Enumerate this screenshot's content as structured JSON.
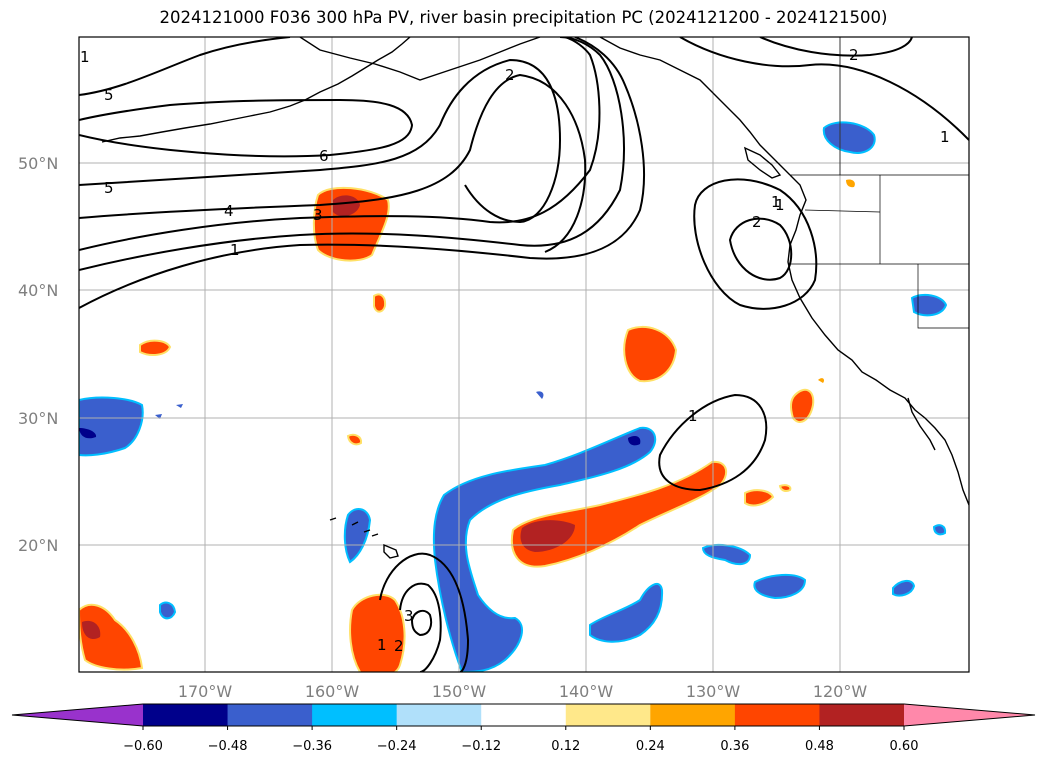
{
  "title": "2024121000 F036 300 hPa PV, river basin precipitation PC (2024121200 - 2024121500)",
  "latitude_labels": [
    "50°N",
    "40°N",
    "30°N",
    "20°N"
  ],
  "longitude_labels": [
    "170°W",
    "160°W",
    "150°W",
    "140°W",
    "130°W",
    "120°W"
  ],
  "pv_contour_labels": [
    "5",
    "5",
    "6",
    "4",
    "3",
    "1",
    "2",
    "2",
    "1",
    "1",
    "2",
    "1",
    "1",
    "3",
    "1",
    "2",
    "1"
  ],
  "colorbar": {
    "tick_labels": [
      "−0.60",
      "−0.48",
      "−0.36",
      "−0.24",
      "−0.12",
      "0.12",
      "0.24",
      "0.36",
      "0.48",
      "0.60"
    ],
    "colors": [
      "#9932cc",
      "#00008b",
      "#3a5fcd",
      "#00bfff",
      "#b0e0fa",
      "#ffffff",
      "#ffe88a",
      "#ffa500",
      "#ff4500",
      "#b22222",
      "#ff88aa"
    ]
  }
}
